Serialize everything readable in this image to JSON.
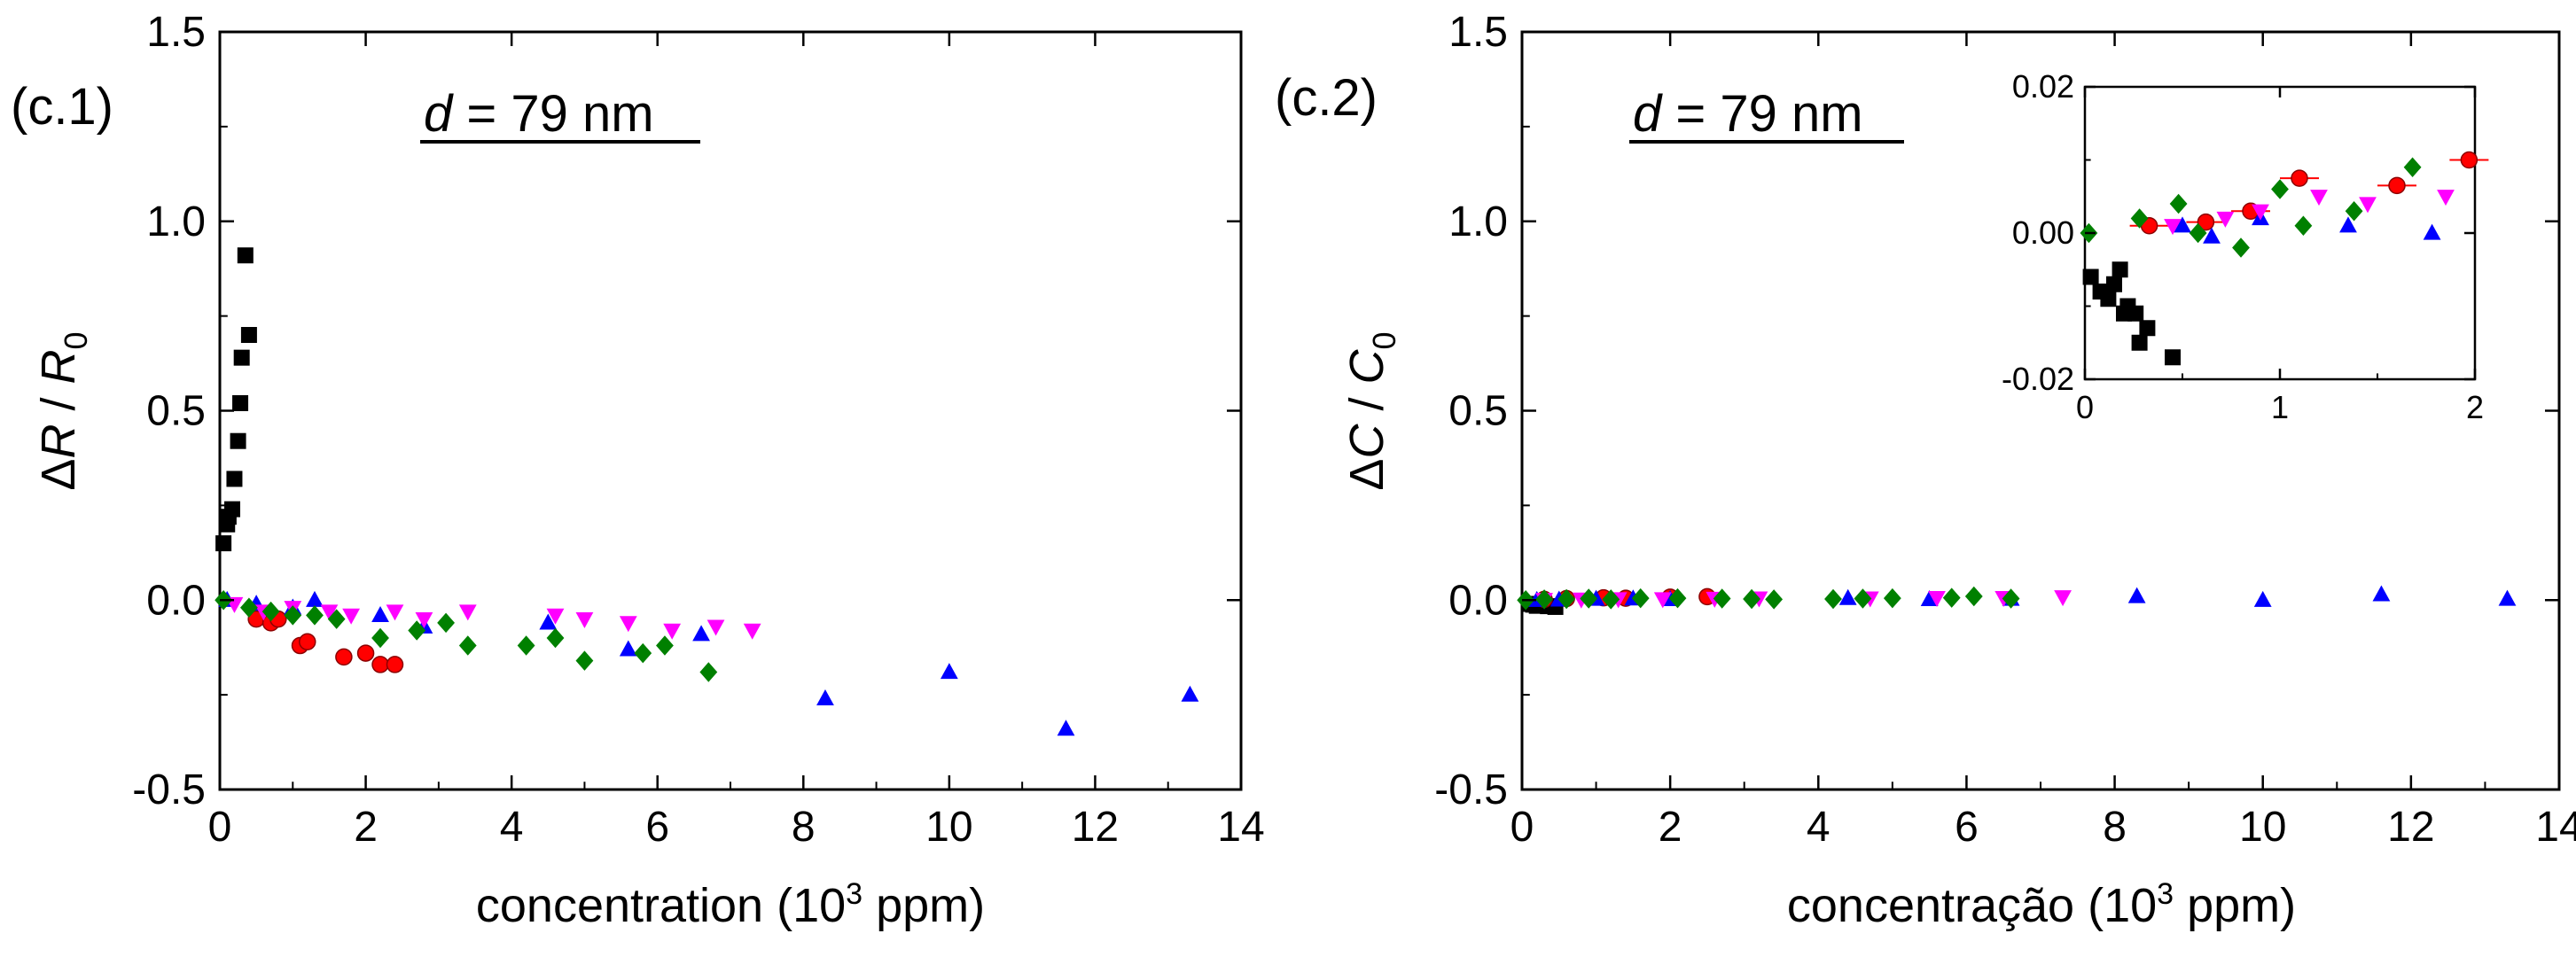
{
  "colors": {
    "A": "#000000",
    "B": "#ff0000",
    "C": "#0000ff",
    "D": "#ff00ff",
    "E": "#008000"
  },
  "chart_data": [
    {
      "panel": "(c.1)",
      "type": "scatter",
      "annotation_var": "d",
      "annotation_rest": " = 79 nm",
      "xlabel": "concentration (10",
      "xlabel_sup": "3",
      "xlabel_end": " ppm)",
      "ylabel_delta": "Δ",
      "ylabel_var": "R",
      "ylabel_mid": " / ",
      "ylabel_var2": "R",
      "ylabel_sub": "0",
      "xlim": [
        0,
        14
      ],
      "ylim": [
        -0.5,
        1.5
      ],
      "xticks": [
        "0",
        "2",
        "4",
        "6",
        "8",
        "10",
        "12",
        "14"
      ],
      "yticks": [
        "-0.5",
        "0.0",
        "0.5",
        "1.0",
        "1.5"
      ],
      "series": [
        {
          "name": "A",
          "marker": "square",
          "x": [
            0.05,
            0.1,
            0.12,
            0.17,
            0.2,
            0.25,
            0.28,
            0.3,
            0.35,
            0.4
          ],
          "y": [
            0.15,
            0.2,
            0.22,
            0.24,
            0.32,
            0.42,
            0.52,
            0.64,
            0.91,
            0.7
          ]
        },
        {
          "name": "B",
          "marker": "circle",
          "x": [
            0.5,
            0.7,
            0.8,
            1.1,
            1.2,
            1.7,
            2.0,
            2.2,
            2.4
          ],
          "y": [
            -0.05,
            -0.06,
            -0.05,
            -0.12,
            -0.11,
            -0.15,
            -0.14,
            -0.17,
            -0.17
          ]
        },
        {
          "name": "C",
          "marker": "triangle-up",
          "x": [
            0.1,
            0.5,
            1.0,
            1.3,
            2.2,
            2.8,
            4.5,
            5.6,
            6.6,
            8.3,
            10,
            11.6,
            13.3
          ],
          "y": [
            0,
            -0.01,
            -0.02,
            0,
            -0.04,
            -0.07,
            -0.06,
            -0.13,
            -0.09,
            -0.26,
            -0.19,
            -0.34,
            -0.25
          ]
        },
        {
          "name": "D",
          "marker": "triangle-down",
          "x": [
            0.2,
            0.6,
            1.0,
            1.5,
            1.8,
            2.4,
            2.8,
            3.4,
            4.6,
            5.0,
            5.6,
            6.2,
            6.8,
            7.3
          ],
          "y": [
            -0.01,
            -0.03,
            -0.02,
            -0.03,
            -0.04,
            -0.03,
            -0.05,
            -0.03,
            -0.04,
            -0.05,
            -0.06,
            -0.08,
            -0.07,
            -0.08
          ]
        },
        {
          "name": "E",
          "marker": "diamond",
          "x": [
            0.05,
            0.4,
            0.7,
            1.0,
            1.3,
            1.6,
            2.2,
            2.7,
            3.1,
            3.4,
            4.2,
            4.6,
            5.0,
            5.8,
            6.1,
            6.7
          ],
          "y": [
            0,
            -0.02,
            -0.03,
            -0.04,
            -0.04,
            -0.05,
            -0.1,
            -0.08,
            -0.06,
            -0.12,
            -0.12,
            -0.1,
            -0.16,
            -0.14,
            -0.12,
            -0.19
          ]
        }
      ]
    },
    {
      "panel": "(c.2)",
      "type": "scatter",
      "annotation_var": "d",
      "annotation_rest": " = 79 nm",
      "xlabel": "concentração (10",
      "xlabel_sup": "3",
      "xlabel_end": " ppm)",
      "ylabel_delta": "Δ",
      "ylabel_var": "C",
      "ylabel_mid": " / ",
      "ylabel_var2": "C",
      "ylabel_sub": "0",
      "xlim": [
        0,
        14
      ],
      "ylim": [
        -0.5,
        1.5
      ],
      "xticks": [
        "0",
        "2",
        "4",
        "6",
        "8",
        "10",
        "12",
        "14"
      ],
      "yticks": [
        "-0.5",
        "0.0",
        "0.5",
        "1.0",
        "1.5"
      ],
      "series": [
        {
          "name": "A",
          "marker": "square",
          "x": [
            0.1,
            0.15,
            0.2,
            0.25,
            0.3,
            0.35,
            0.45
          ],
          "y": [
            -0.01,
            -0.012,
            -0.015,
            -0.01,
            -0.013,
            -0.016,
            -0.018
          ]
        },
        {
          "name": "B",
          "marker": "circle",
          "x": [
            0.3,
            0.6,
            1.1,
            1.4,
            2.0,
            2.5
          ],
          "y": [
            0.002,
            0.004,
            0.006,
            0.005,
            0.008,
            0.009
          ]
        },
        {
          "name": "C",
          "marker": "triangle-up",
          "x": [
            0.2,
            0.5,
            1.0,
            1.5,
            2.0,
            4.4,
            5.5,
            6.6,
            8.3,
            10,
            11.6,
            13.3
          ],
          "y": [
            0,
            0.001,
            0.003,
            0.004,
            0.002,
            0.005,
            0.002,
            0.003,
            0.01,
            0,
            0.015,
            0.003
          ]
        },
        {
          "name": "D",
          "marker": "triangle-down",
          "x": [
            0.3,
            0.8,
            1.3,
            1.9,
            2.6,
            3.2,
            4.7,
            5.6,
            6.5,
            7.3
          ],
          "y": [
            0.001,
            0.002,
            0.003,
            0.003,
            0.004,
            0.005,
            0.005,
            0.006,
            0.006,
            0.008
          ]
        },
        {
          "name": "E",
          "marker": "diamond",
          "x": [
            0.05,
            0.3,
            0.6,
            0.9,
            1.2,
            1.6,
            2.1,
            2.7,
            3.1,
            3.4,
            4.2,
            4.6,
            5.0,
            5.8,
            6.1,
            6.6
          ],
          "y": [
            0,
            0.002,
            0.003,
            0.004,
            0.002,
            0.005,
            0.005,
            0.004,
            0.003,
            0.002,
            0.003,
            0.004,
            0.005,
            0.006,
            0.01,
            0.004
          ]
        }
      ],
      "inset": {
        "xlim": [
          0,
          2
        ],
        "ylim": [
          -0.02,
          0.02
        ],
        "xticks": [
          "0",
          "1",
          "2"
        ],
        "yticks": [
          "-0.02",
          "0.00",
          "0.02"
        ],
        "series": [
          {
            "name": "A",
            "marker": "square",
            "x": [
              0.03,
              0.08,
              0.12,
              0.15,
              0.18,
              0.2,
              0.22,
              0.26,
              0.28,
              0.32,
              0.45
            ],
            "y": [
              -0.006,
              -0.008,
              -0.009,
              -0.007,
              -0.005,
              -0.011,
              -0.01,
              -0.011,
              -0.015,
              -0.013,
              -0.017
            ]
          },
          {
            "name": "B",
            "marker": "circle",
            "x": [
              0.33,
              0.62,
              0.85,
              1.1,
              1.6,
              1.97
            ],
            "y": [
              0.001,
              0.0015,
              0.003,
              0.0075,
              0.0065,
              0.01
            ]
          },
          {
            "name": "C",
            "marker": "triangle-up",
            "x": [
              0.5,
              0.65,
              0.9,
              1.35,
              1.78
            ],
            "y": [
              0.001,
              -0.0005,
              0.002,
              0.001,
              0
            ]
          },
          {
            "name": "D",
            "marker": "triangle-down",
            "x": [
              0.45,
              0.72,
              0.9,
              1.2,
              1.45,
              1.85
            ],
            "y": [
              0.001,
              0.002,
              0.003,
              0.005,
              0.004,
              0.005
            ]
          },
          {
            "name": "E",
            "marker": "diamond",
            "x": [
              0.02,
              0.28,
              0.48,
              0.58,
              0.8,
              1.0,
              1.12,
              1.38,
              1.68
            ],
            "y": [
              0,
              0.002,
              0.004,
              0,
              -0.002,
              0.006,
              0.001,
              0.003,
              0.009
            ]
          }
        ]
      }
    }
  ]
}
